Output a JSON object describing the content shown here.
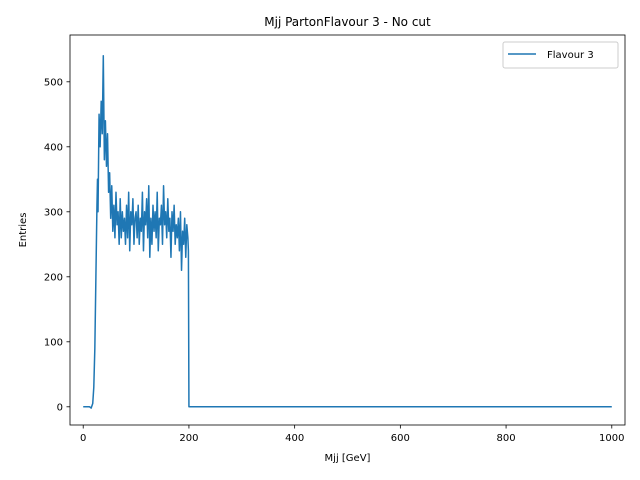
{
  "chart_data": {
    "type": "line",
    "title": "Mjj PartonFlavour 3 - No cut",
    "xlabel": "Mjj [GeV]",
    "ylabel": "Entries",
    "xlim": [
      -25,
      1025
    ],
    "ylim": [
      -28,
      572
    ],
    "xticks": [
      0,
      200,
      400,
      600,
      800,
      1000
    ],
    "yticks": [
      0,
      100,
      200,
      300,
      400,
      500
    ],
    "grid": false,
    "legend_position": "top-right",
    "series": [
      {
        "name": "Flavour 3",
        "color": "#1f77b4",
        "x": [
          0,
          6,
          12,
          15,
          18,
          20,
          22,
          24,
          26,
          27,
          28,
          30,
          32,
          34,
          36,
          38,
          40,
          42,
          44,
          46,
          48,
          50,
          52,
          54,
          56,
          58,
          60,
          62,
          64,
          66,
          68,
          70,
          72,
          74,
          76,
          78,
          80,
          82,
          84,
          86,
          88,
          90,
          92,
          94,
          96,
          98,
          100,
          102,
          104,
          106,
          108,
          110,
          112,
          114,
          116,
          118,
          120,
          122,
          124,
          126,
          128,
          130,
          132,
          134,
          136,
          138,
          140,
          142,
          144,
          146,
          148,
          150,
          152,
          154,
          156,
          158,
          160,
          162,
          164,
          166,
          168,
          170,
          172,
          174,
          176,
          178,
          180,
          182,
          184,
          186,
          188,
          190,
          192,
          194,
          196,
          198,
          199,
          200,
          210,
          300,
          400,
          500,
          600,
          700,
          800,
          900,
          1000
        ],
        "y": [
          0,
          0,
          0,
          -2,
          5,
          30,
          90,
          200,
          310,
          350,
          300,
          450,
          400,
          470,
          420,
          540,
          380,
          440,
          370,
          420,
          330,
          360,
          290,
          340,
          270,
          310,
          260,
          330,
          280,
          300,
          250,
          320,
          260,
          300,
          270,
          290,
          250,
          310,
          260,
          330,
          240,
          300,
          280,
          320,
          250,
          290,
          300,
          260,
          310,
          250,
          290,
          270,
          330,
          240,
          300,
          280,
          320,
          260,
          340,
          230,
          290,
          250,
          310,
          270,
          300,
          260,
          330,
          240,
          290,
          280,
          310,
          250,
          340,
          280,
          300,
          260,
          320,
          270,
          290,
          230,
          300,
          270,
          310,
          250,
          280,
          260,
          290,
          240,
          300,
          210,
          270,
          250,
          290,
          230,
          280,
          260,
          240,
          0,
          0,
          0,
          0,
          0,
          0,
          0,
          0,
          0,
          0
        ]
      }
    ]
  }
}
